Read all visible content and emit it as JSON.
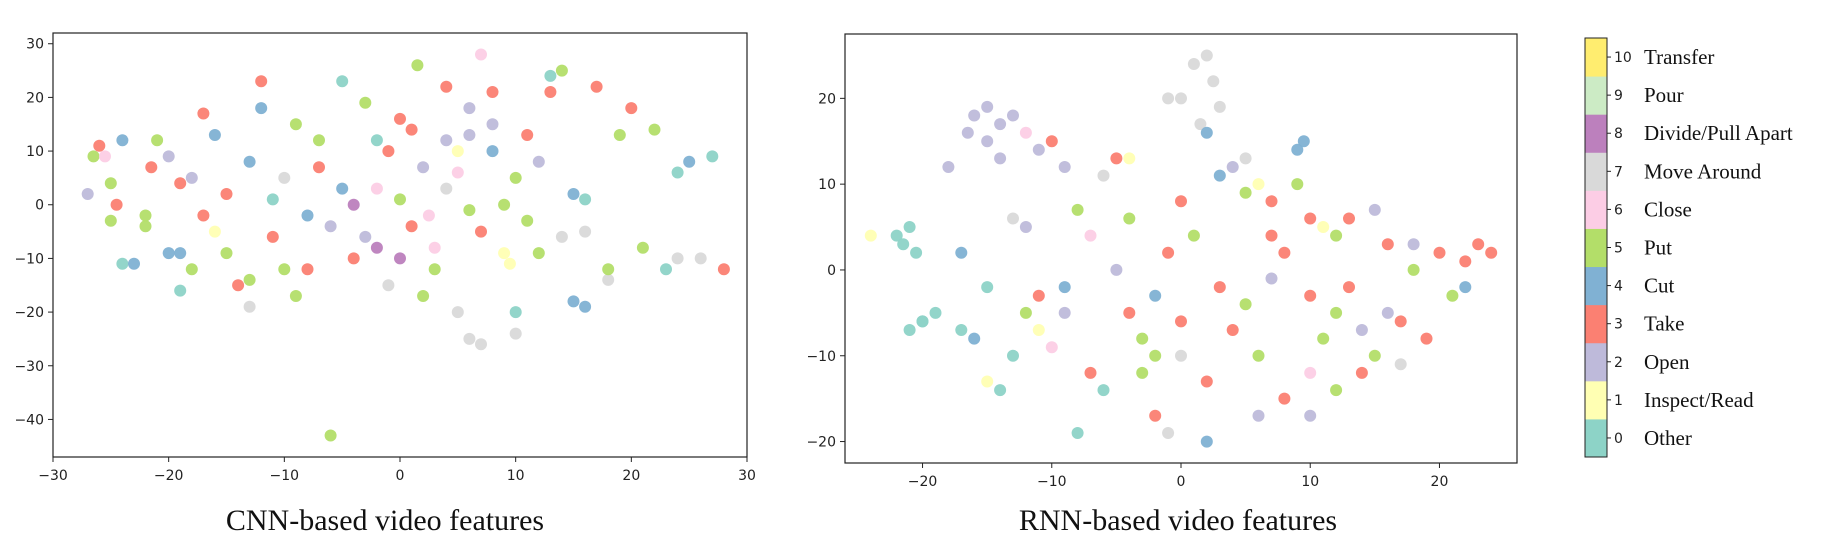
{
  "chart_data": [
    {
      "type": "scatter",
      "caption": "CNN-based video features",
      "xlim": [
        -30,
        30
      ],
      "ylim": [
        -47,
        32
      ],
      "xticks": [
        -30,
        -20,
        -10,
        0,
        10,
        20,
        30
      ],
      "yticks": [
        -40,
        -30,
        -20,
        -10,
        0,
        10,
        20,
        30
      ],
      "grid": false,
      "points": [
        [
          -27,
          2,
          2
        ],
        [
          -26.5,
          9,
          5
        ],
        [
          -26,
          11,
          3
        ],
        [
          -25.5,
          9,
          6
        ],
        [
          -25,
          4,
          5
        ],
        [
          -24.5,
          0,
          3
        ],
        [
          -24,
          12,
          4
        ],
        [
          -24,
          -11,
          0
        ],
        [
          -23,
          -11,
          4
        ],
        [
          -22,
          -4,
          5
        ],
        [
          -21.5,
          7,
          3
        ],
        [
          -21,
          12,
          5
        ],
        [
          -20,
          9,
          2
        ],
        [
          -19,
          -16,
          0
        ],
        [
          -19,
          -9,
          4
        ],
        [
          -18,
          5,
          2
        ],
        [
          -18,
          -12,
          5
        ],
        [
          -17,
          17,
          3
        ],
        [
          -16,
          -5,
          1
        ],
        [
          -16,
          13,
          4
        ],
        [
          -15,
          -9,
          5
        ],
        [
          -14,
          -15,
          3
        ],
        [
          -13,
          8,
          4
        ],
        [
          -13,
          -19,
          7
        ],
        [
          -12,
          18,
          4
        ],
        [
          -12,
          23,
          3
        ],
        [
          -11,
          -6,
          3
        ],
        [
          -10,
          -12,
          5
        ],
        [
          -10,
          5,
          7
        ],
        [
          -9,
          -17,
          5
        ],
        [
          -8,
          -12,
          3
        ],
        [
          -7,
          12,
          5
        ],
        [
          -6,
          -4,
          2
        ],
        [
          -6,
          -43,
          5
        ],
        [
          -5,
          23,
          0
        ],
        [
          -5,
          3,
          4
        ],
        [
          -4,
          -10,
          3
        ],
        [
          -3,
          19,
          5
        ],
        [
          -2,
          -8,
          8
        ],
        [
          -2,
          3,
          6
        ],
        [
          -1,
          10,
          3
        ],
        [
          0,
          1,
          5
        ],
        [
          0,
          -10,
          8
        ],
        [
          1,
          14,
          3
        ],
        [
          1.5,
          26,
          5
        ],
        [
          2,
          7,
          2
        ],
        [
          2.5,
          -2,
          6
        ],
        [
          3,
          -12,
          5
        ],
        [
          4,
          22,
          3
        ],
        [
          4,
          12,
          2
        ],
        [
          5,
          6,
          6
        ],
        [
          5,
          -20,
          7
        ],
        [
          6,
          -25,
          7
        ],
        [
          6,
          13,
          2
        ],
        [
          7,
          28,
          6
        ],
        [
          7,
          -26,
          7
        ],
        [
          8,
          10,
          4
        ],
        [
          8,
          21,
          3
        ],
        [
          9,
          -9,
          1
        ],
        [
          9.5,
          -11,
          1
        ],
        [
          10,
          5,
          5
        ],
        [
          10,
          -20,
          0
        ],
        [
          11,
          13,
          3
        ],
        [
          12,
          -9,
          5
        ],
        [
          13,
          24,
          0
        ],
        [
          13,
          21,
          3
        ],
        [
          14,
          25,
          5
        ],
        [
          15,
          -18,
          4
        ],
        [
          16,
          -19,
          4
        ],
        [
          16,
          -5,
          7
        ],
        [
          17,
          22,
          3
        ],
        [
          18,
          -14,
          7
        ],
        [
          19,
          13,
          5
        ],
        [
          20,
          18,
          3
        ],
        [
          21,
          -8,
          5
        ],
        [
          22,
          14,
          5
        ],
        [
          23,
          -12,
          0
        ],
        [
          24,
          -10,
          7
        ],
        [
          24,
          6,
          0
        ],
        [
          25,
          8,
          4
        ],
        [
          26,
          -10,
          7
        ],
        [
          27,
          9,
          0
        ],
        [
          28,
          -12,
          3
        ],
        [
          -8,
          -2,
          4
        ],
        [
          -3,
          -6,
          2
        ],
        [
          1,
          -4,
          3
        ],
        [
          4,
          3,
          7
        ],
        [
          6,
          18,
          2
        ],
        [
          9,
          0,
          5
        ],
        [
          12,
          8,
          2
        ],
        [
          -15,
          2,
          3
        ],
        [
          -20,
          -9,
          4
        ],
        [
          -22,
          -2,
          5
        ],
        [
          -25,
          -3,
          5
        ],
        [
          0,
          16,
          3
        ],
        [
          3,
          -8,
          6
        ],
        [
          7,
          -5,
          3
        ],
        [
          -11,
          1,
          0
        ],
        [
          -7,
          7,
          3
        ],
        [
          5,
          10,
          1
        ],
        [
          -1,
          -15,
          7
        ],
        [
          -17,
          -2,
          3
        ],
        [
          -9,
          15,
          5
        ],
        [
          2,
          -17,
          5
        ],
        [
          10,
          -24,
          7
        ],
        [
          14,
          -6,
          7
        ],
        [
          18,
          -12,
          5
        ],
        [
          -4,
          0,
          8
        ],
        [
          8,
          15,
          2
        ],
        [
          11,
          -3,
          5
        ],
        [
          -13,
          -14,
          5
        ],
        [
          -19,
          4,
          3
        ],
        [
          -2,
          12,
          0
        ],
        [
          6,
          -1,
          5
        ],
        [
          15,
          2,
          4
        ],
        [
          16,
          1,
          0
        ]
      ]
    },
    {
      "type": "scatter",
      "caption": "RNN-based video features",
      "xlim": [
        -26,
        26
      ],
      "ylim": [
        -22.5,
        27.5
      ],
      "xticks": [
        -20,
        -10,
        0,
        10,
        20
      ],
      "yticks": [
        -20,
        -10,
        0,
        10,
        20
      ],
      "grid": false,
      "points": [
        [
          -24,
          4,
          1
        ],
        [
          -22,
          4,
          0
        ],
        [
          -21.5,
          3,
          0
        ],
        [
          -21,
          5,
          0
        ],
        [
          -20.5,
          2,
          0
        ],
        [
          -21,
          -7,
          0
        ],
        [
          -20,
          -6,
          0
        ],
        [
          -19,
          -5,
          0
        ],
        [
          -17,
          -7,
          0
        ],
        [
          -16,
          -8,
          4
        ],
        [
          -15,
          -13,
          1
        ],
        [
          -14,
          -14,
          0
        ],
        [
          -13,
          -10,
          0
        ],
        [
          -16,
          18,
          2
        ],
        [
          -15,
          19,
          2
        ],
        [
          -14,
          17,
          2
        ],
        [
          -16.5,
          16,
          2
        ],
        [
          -13,
          18,
          2
        ],
        [
          -15,
          15,
          2
        ],
        [
          -14,
          13,
          2
        ],
        [
          -12,
          16,
          6
        ],
        [
          -11,
          14,
          2
        ],
        [
          -10,
          15,
          3
        ],
        [
          -9,
          12,
          2
        ],
        [
          -13,
          6,
          7
        ],
        [
          -12,
          5,
          2
        ],
        [
          -12,
          -5,
          5
        ],
        [
          -11,
          -7,
          1
        ],
        [
          -10,
          -9,
          6
        ],
        [
          -9,
          -5,
          2
        ],
        [
          -8,
          7,
          5
        ],
        [
          -7,
          4,
          6
        ],
        [
          -6,
          11,
          7
        ],
        [
          -5,
          13,
          3
        ],
        [
          -4,
          13,
          1
        ],
        [
          -5,
          0,
          2
        ],
        [
          -4,
          -5,
          3
        ],
        [
          -3,
          -12,
          5
        ],
        [
          -2,
          -17,
          3
        ],
        [
          -1,
          -19,
          7
        ],
        [
          0,
          -6,
          3
        ],
        [
          1,
          24,
          7
        ],
        [
          2,
          25,
          7
        ],
        [
          2.5,
          22,
          7
        ],
        [
          3,
          19,
          7
        ],
        [
          1.5,
          17,
          7
        ],
        [
          2,
          16,
          4
        ],
        [
          0,
          20,
          7
        ],
        [
          -1,
          20,
          7
        ],
        [
          3,
          11,
          4
        ],
        [
          5,
          13,
          7
        ],
        [
          6,
          10,
          1
        ],
        [
          5,
          9,
          5
        ],
        [
          7,
          8,
          3
        ],
        [
          9,
          14,
          4
        ],
        [
          9.5,
          15,
          4
        ],
        [
          10,
          6,
          3
        ],
        [
          11,
          5,
          1
        ],
        [
          12,
          4,
          5
        ],
        [
          10,
          -3,
          3
        ],
        [
          12,
          -5,
          5
        ],
        [
          14,
          -7,
          2
        ],
        [
          15,
          7,
          2
        ],
        [
          16,
          3,
          3
        ],
        [
          18,
          3,
          2
        ],
        [
          20,
          2,
          3
        ],
        [
          22,
          1,
          3
        ],
        [
          23,
          3,
          3
        ],
        [
          24,
          2,
          3
        ],
        [
          21,
          -3,
          5
        ],
        [
          22,
          -2,
          4
        ],
        [
          19,
          -8,
          3
        ],
        [
          17,
          -11,
          7
        ],
        [
          16,
          -5,
          2
        ],
        [
          14,
          -12,
          3
        ],
        [
          12,
          -14,
          5
        ],
        [
          10,
          -17,
          2
        ],
        [
          8,
          -15,
          3
        ],
        [
          6,
          -10,
          5
        ],
        [
          4,
          -7,
          3
        ],
        [
          2,
          -20,
          4
        ],
        [
          0,
          -10,
          7
        ],
        [
          -2,
          -3,
          4
        ],
        [
          -6,
          -14,
          0
        ],
        [
          -8,
          -19,
          0
        ],
        [
          1,
          4,
          5
        ],
        [
          3,
          -2,
          3
        ],
        [
          5,
          -4,
          5
        ],
        [
          7,
          -1,
          2
        ],
        [
          -1,
          2,
          3
        ],
        [
          -3,
          -8,
          5
        ],
        [
          -7,
          -12,
          3
        ],
        [
          -9,
          -2,
          4
        ],
        [
          6,
          -17,
          2
        ],
        [
          8,
          2,
          3
        ],
        [
          11,
          -8,
          5
        ],
        [
          13,
          -2,
          3
        ],
        [
          15,
          -10,
          5
        ],
        [
          -18,
          12,
          2
        ],
        [
          -17,
          2,
          4
        ],
        [
          -11,
          -3,
          3
        ],
        [
          -4,
          6,
          5
        ],
        [
          0,
          8,
          3
        ],
        [
          4,
          12,
          2
        ],
        [
          9,
          10,
          5
        ],
        [
          13,
          6,
          3
        ],
        [
          18,
          0,
          5
        ],
        [
          -20,
          -6,
          0
        ],
        [
          -15,
          -2,
          0
        ],
        [
          2,
          -13,
          3
        ],
        [
          10,
          -12,
          6
        ],
        [
          17,
          -6,
          3
        ],
        [
          -2,
          -10,
          5
        ],
        [
          7,
          4,
          3
        ]
      ]
    }
  ],
  "colorbar": {
    "ticks": [
      "0",
      "1",
      "2",
      "3",
      "4",
      "5",
      "6",
      "7",
      "8",
      "9",
      "10"
    ],
    "labels": [
      "Other",
      "Inspect/Read",
      "Open",
      "Take",
      "Cut",
      "Put",
      "Close",
      "Move Around",
      "Divide/Pull Apart",
      "Pour",
      "Transfer"
    ],
    "colors": [
      "#8dd3c7",
      "#ffffb3",
      "#bebada",
      "#fb8072",
      "#80b1d3",
      "#b3de69",
      "#fccde5",
      "#d9d9d9",
      "#bc80bd",
      "#ccebc5",
      "#ffed6f"
    ]
  }
}
